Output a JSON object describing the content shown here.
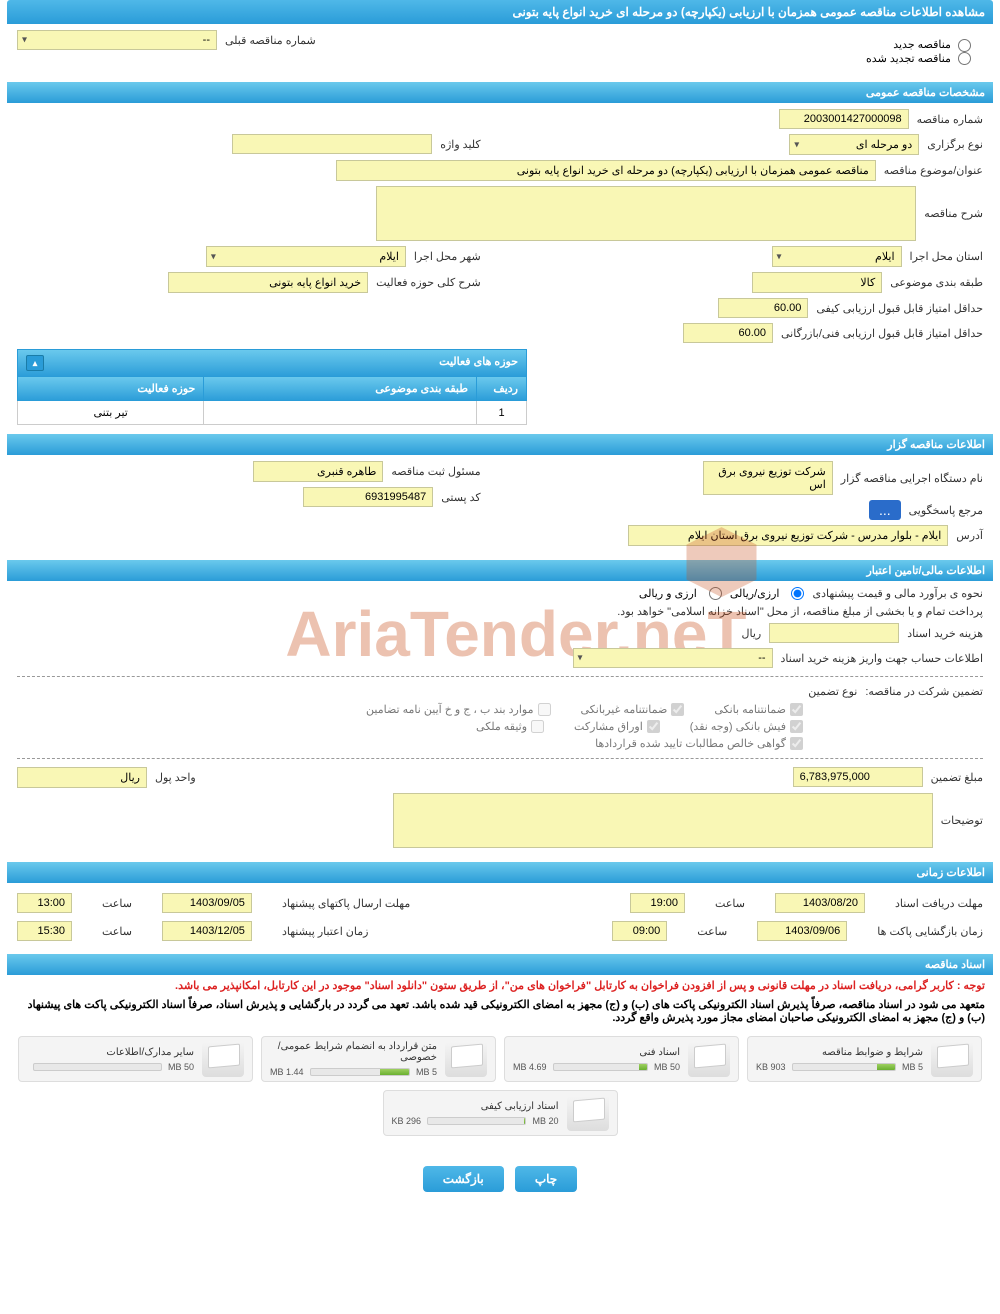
{
  "page_title": "مشاهده اطلاعات مناقصه عمومی همزمان با ارزیابی (یکپارچه) دو مرحله ای خرید انواع پایه بتونی",
  "tender_type": {
    "new_label": "مناقصه جدید",
    "renewed_label": "مناقصه تجدید شده",
    "prev_number_label": "شماره مناقصه قبلی",
    "prev_number_value": "--"
  },
  "section_general": {
    "title": "مشخصات مناقصه عمومی",
    "tender_number_label": "شماره مناقصه",
    "tender_number": "2003001427000098",
    "holding_type_label": "نوع برگزاری",
    "holding_type": "دو مرحله ای",
    "keyword_label": "کلید واژه",
    "keyword": "",
    "subject_label": "عنوان/موضوع مناقصه",
    "subject": "مناقصه عمومی همزمان با ارزیابی (یکپارچه) دو مرحله ای خرید انواع پایه بتونی",
    "description_label": "شرح مناقصه",
    "province_label": "استان محل اجرا",
    "province": "ایلام",
    "city_label": "شهر محل اجرا",
    "city": "ایلام",
    "category_label": "طبقه بندی موضوعی",
    "category": "کالا",
    "activity_desc_label": "شرح کلی حوزه فعالیت",
    "activity_desc": "خرید انواع پایه بتونی",
    "quality_score_label": "حداقل امتیاز قابل قبول ارزیابی کیفی",
    "quality_score": "60.00",
    "tech_score_label": "حداقل امتیاز قابل قبول ارزیابی فنی/بازرگانی",
    "tech_score": "60.00"
  },
  "activity_table": {
    "title": "حوزه های فعالیت",
    "col_row": "ردیف",
    "col_category": "طبقه بندی موضوعی",
    "col_activity": "حوزه فعالیت",
    "rows": [
      {
        "num": "1",
        "category": "",
        "activity": "تیر بتنی"
      }
    ]
  },
  "section_organizer": {
    "title": "اطلاعات مناقصه گزار",
    "executor_label": "نام دستگاه اجرایی مناقصه گزار",
    "executor": "شرکت توزیع نیروی برق اس",
    "registrar_label": "مسئول ثبت مناقصه",
    "registrar": "طاهره قنبری",
    "response_ref_label": "مرجع پاسخگویی",
    "more_btn": "...",
    "postal_label": "کد پستی",
    "postal": "6931995487",
    "address_label": "آدرس",
    "address": "ایلام - بلوار مدرس - شرکت توزیع نیروی برق استان ایلام"
  },
  "section_finance": {
    "title": "اطلاعات مالی/تامین اعتبار",
    "estimate_label": "نحوه ی برآورد مالی و قیمت پیشنهادی",
    "option_arzi_riali": "ارزی/ریالی",
    "option_arzi_riali_2": "ارزی و ریالی",
    "payment_note": "پرداخت تمام و یا بخشی از مبلغ مناقصه، از محل \"اسناد خزانه اسلامی\" خواهد بود.",
    "doc_cost_label": "هزینه خرید اسناد",
    "doc_cost_unit": "ریال",
    "account_info_label": "اطلاعات حساب جهت واریز هزینه خرید اسناد",
    "account_info_value": "--",
    "guarantee_label": "تضمین شرکت در مناقصه:",
    "guarantee_type_label": "نوع تضمین",
    "chk_bank_guarantee": "ضمانتنامه بانکی",
    "chk_nonbank_guarantee": "ضمانتنامه غیربانکی",
    "chk_items_bjkh": "موارد بند ب ، ج و خ آیین نامه تضامین",
    "chk_bank_receipt": "فیش بانکی (وجه نقد)",
    "chk_participation": "اوراق مشارکت",
    "chk_property": "وثیقه ملکی",
    "chk_net_claims": "گواهی خالص مطالبات تایید شده قراردادها",
    "guarantee_amount_label": "مبلغ تضمین",
    "guarantee_amount": "6,783,975,000",
    "currency_label": "واحد پول",
    "currency": "ریال",
    "notes_label": "توضیحات"
  },
  "section_timing": {
    "title": "اطلاعات زمانی",
    "receipt_deadline_label": "مهلت دریافت اسناد",
    "receipt_date": "1403/08/20",
    "receipt_time_label": "ساعت",
    "receipt_time": "19:00",
    "submit_deadline_label": "مهلت ارسال پاکتهای پیشنهاد",
    "submit_date": "1403/09/05",
    "submit_time": "13:00",
    "opening_label": "زمان بازگشایی پاکت ها",
    "opening_date": "1403/09/06",
    "opening_time": "09:00",
    "validity_label": "زمان اعتبار پیشنهاد",
    "validity_date": "1403/12/05",
    "validity_time": "15:30"
  },
  "section_docs": {
    "title": "اسناد مناقصه",
    "notice1": "توجه : کاربر گرامی، دریافت اسناد در مهلت قانونی و پس از افزودن فراخوان به کارتابل \"فراخوان های من\"، از طریق ستون \"دانلود اسناد\" موجود در این کارتابل، امکانپذیر می باشد.",
    "notice2": "متعهد می شود در اسناد مناقصه، صرفاً پذیرش اسناد الکترونیکی پاکت های (ب) و (ج) مجهز به امضای الکترونیکی قید شده باشد. تعهد می گردد در بارگشایی و پذیرش اسناد، صرفاً اسناد الکترونیکی پاکت های پیشنهاد (ب) و (ج) مجهز به امضای الکترونیکی صاحبان امضای مجاز مورد پذیرش واقع گردد.",
    "files": [
      {
        "title": "شرایط و ضوابط مناقصه",
        "used": "903 KB",
        "total": "5 MB",
        "pct": 18
      },
      {
        "title": "اسناد فنی",
        "used": "4.69 MB",
        "total": "50 MB",
        "pct": 9
      },
      {
        "title": "متن قرارداد به انضمام شرایط عمومی/خصوصی",
        "used": "1.44 MB",
        "total": "5 MB",
        "pct": 29
      },
      {
        "title": "سایر مدارک/اطلاعات",
        "used": "",
        "total": "50 MB",
        "pct": 0
      },
      {
        "title": "اسناد ارزیابی کیفی",
        "used": "296 KB",
        "total": "20 MB",
        "pct": 2
      }
    ]
  },
  "buttons": {
    "print": "چاپ",
    "back": "بازگشت"
  },
  "colors": {
    "header_bg": "#2a9cd8",
    "field_bg": "#f9f7b5",
    "progress_fill": "#6ab030"
  }
}
